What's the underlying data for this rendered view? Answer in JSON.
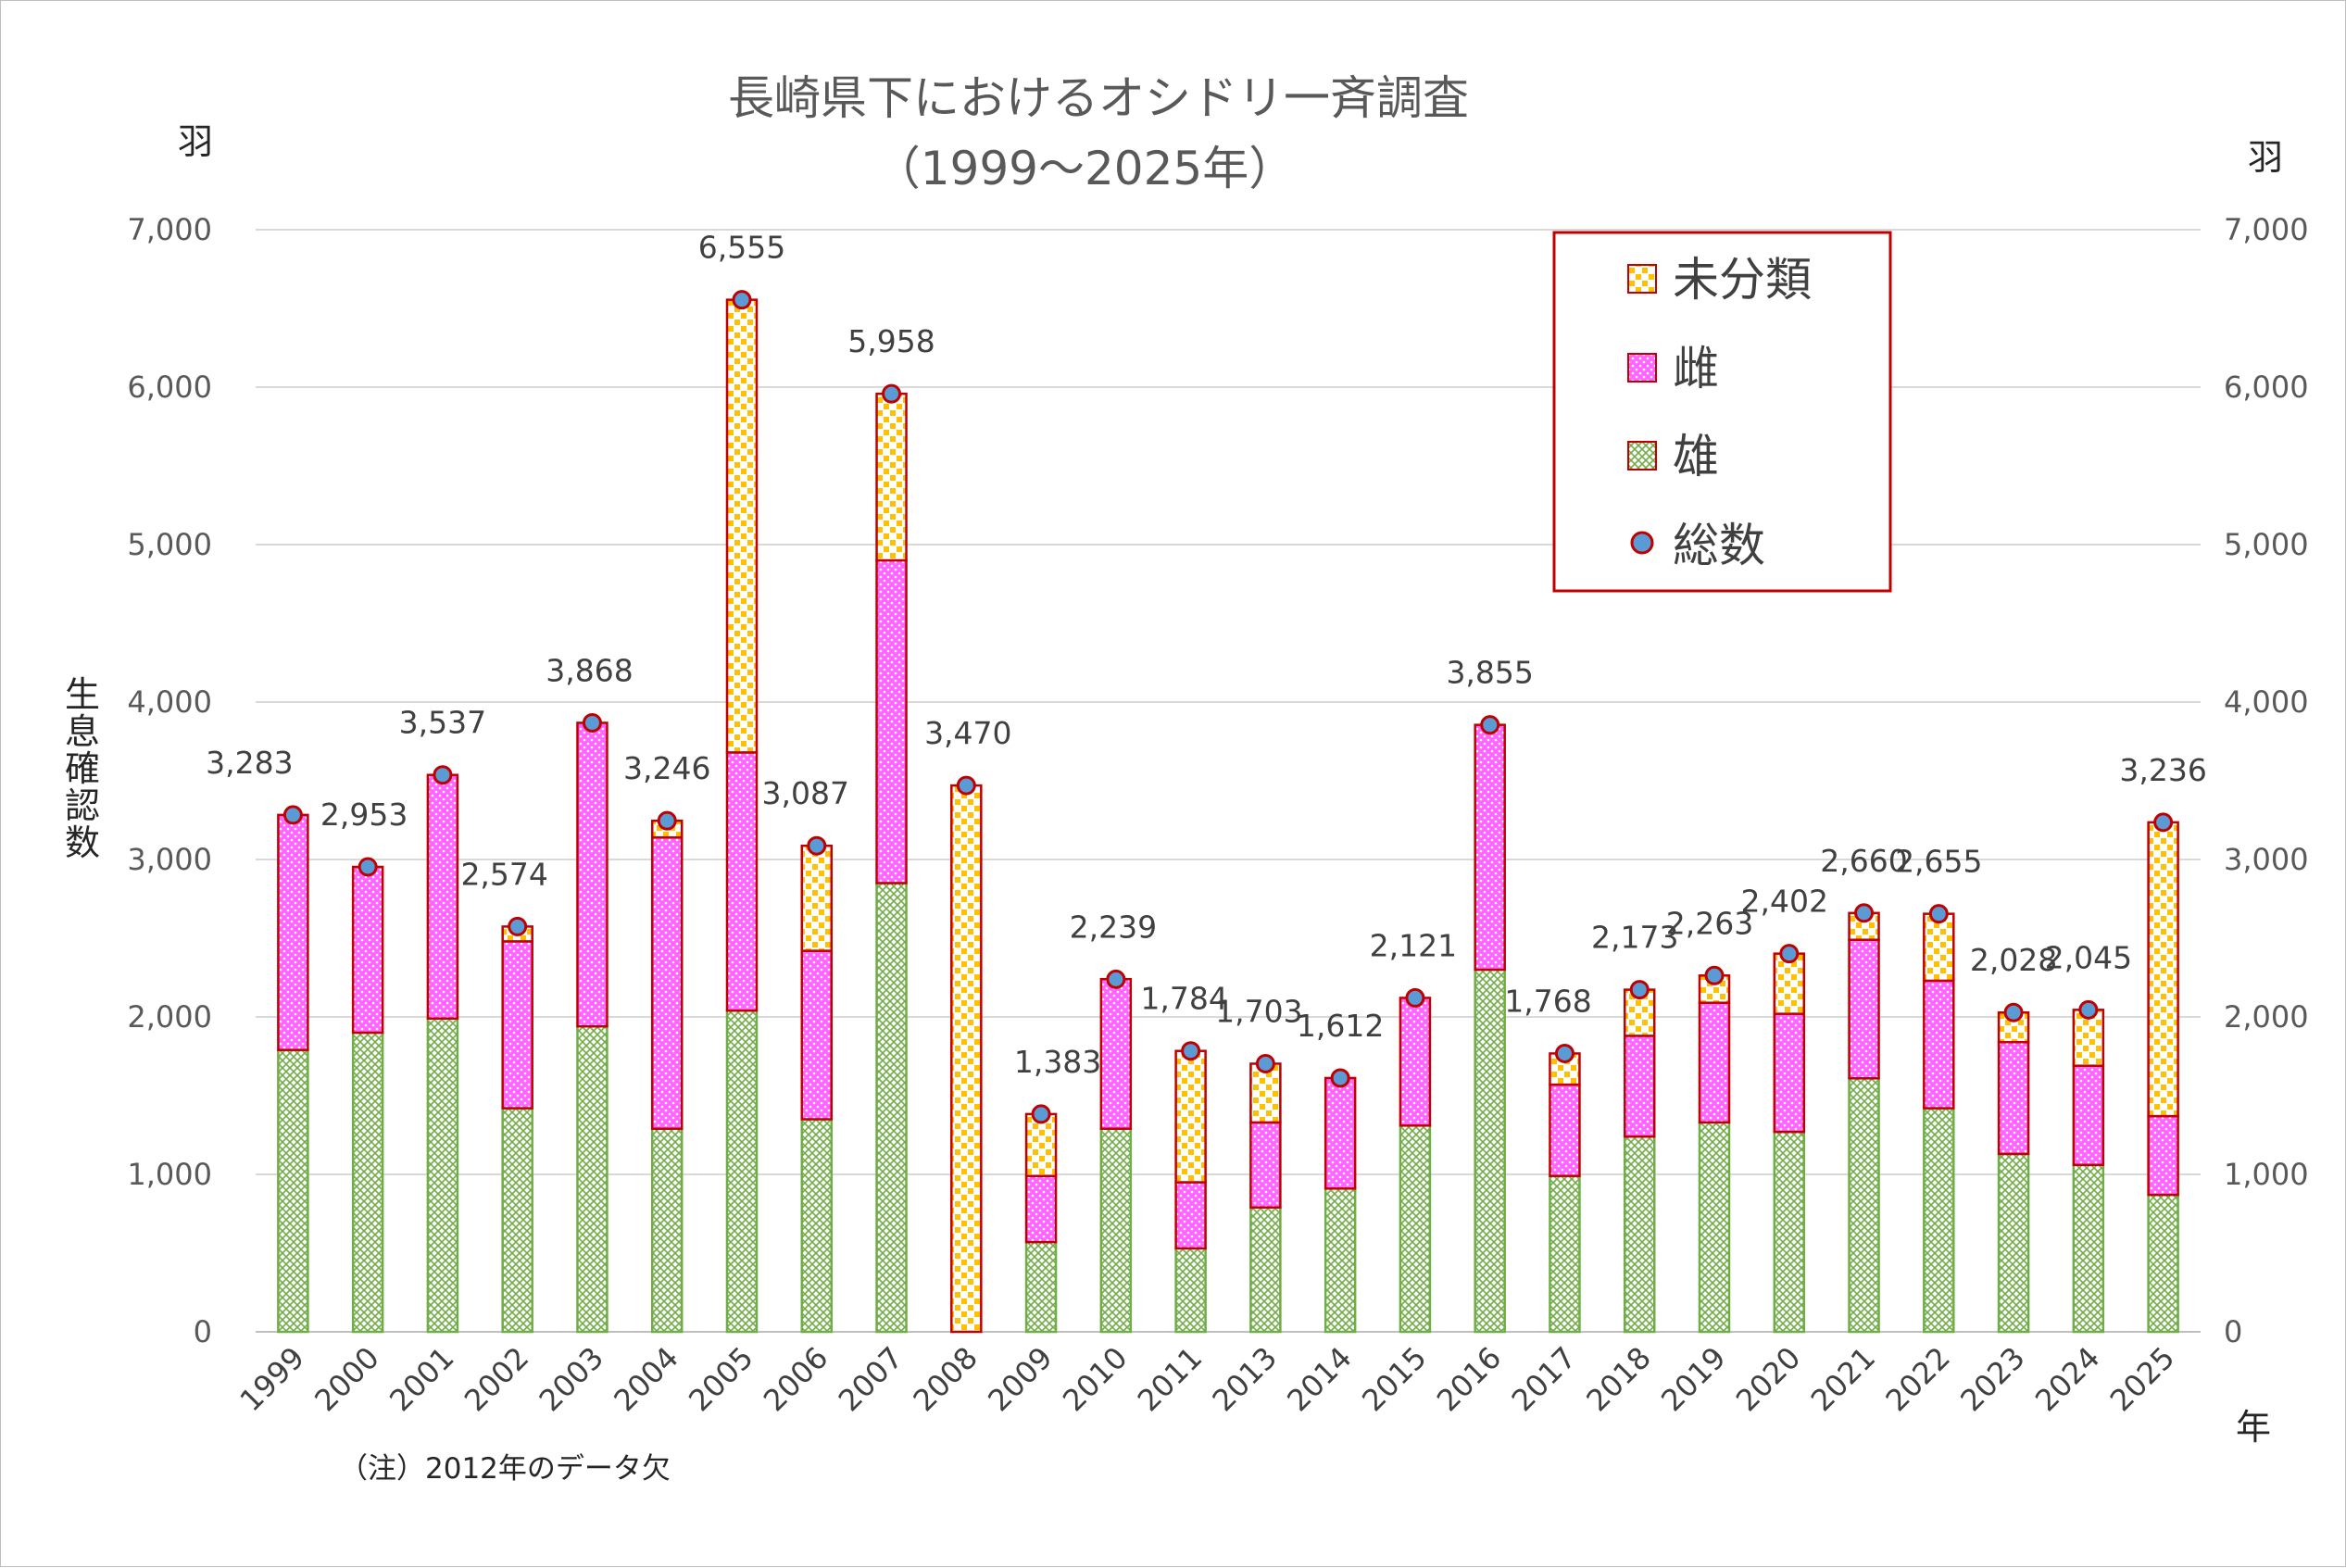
{
  "chart_data": {
    "type": "bar",
    "stacked": true,
    "title": "長崎県下におけるオシドリ一斉調査",
    "subtitle": "（1999～2025年）",
    "ylabel": "生息確認数",
    "y_unit_left": "羽",
    "y_unit_right": "羽",
    "xlabel": "年",
    "note": "（注）2012年のデータ欠",
    "ylim": [
      0,
      7000
    ],
    "yticks": [
      "0",
      "1,000",
      "2,000",
      "3,000",
      "4,000",
      "5,000",
      "6,000",
      "7,000"
    ],
    "grid": true,
    "legend_position": "top-right",
    "categories": [
      "1999",
      "2000",
      "2001",
      "2002",
      "2003",
      "2004",
      "2005",
      "2006",
      "2007",
      "2008",
      "2009",
      "2010",
      "2011",
      "2013",
      "2014",
      "2015",
      "2016",
      "2017",
      "2018",
      "2019",
      "2020",
      "2021",
      "2022",
      "2023",
      "2024",
      "2025"
    ],
    "series": [
      {
        "name": "雄",
        "color": "#70ad47",
        "pattern": "crosshatch",
        "values": [
          1790,
          1900,
          1990,
          1420,
          1940,
          1290,
          2040,
          1350,
          2850,
          0,
          570,
          1290,
          530,
          790,
          910,
          1310,
          2300,
          990,
          1240,
          1330,
          1270,
          1610,
          1420,
          1130,
          1060,
          870
        ]
      },
      {
        "name": "雌",
        "color": "#ff66ff",
        "pattern": "dots",
        "values": [
          1493,
          1053,
          1547,
          1060,
          1928,
          1850,
          1640,
          1070,
          2050,
          0,
          420,
          950,
          420,
          540,
          702,
          811,
          1555,
          580,
          640,
          760,
          750,
          880,
          810,
          710,
          630,
          500
        ]
      },
      {
        "name": "未分類",
        "color": "#ffc000",
        "pattern": "checker",
        "values": [
          0,
          0,
          0,
          94,
          0,
          106,
          2875,
          667,
          1058,
          3470,
          393,
          0,
          834,
          373,
          0,
          0,
          0,
          198,
          293,
          173,
          382,
          170,
          425,
          188,
          355,
          1866
        ]
      }
    ],
    "totals": {
      "name": "総数",
      "values": [
        3283,
        2953,
        3537,
        2574,
        3868,
        3246,
        6555,
        3087,
        5958,
        3470,
        1383,
        2239,
        1784,
        1703,
        1612,
        2121,
        3855,
        1768,
        2173,
        2263,
        2402,
        2660,
        2655,
        2028,
        2045,
        3236
      ],
      "labels": [
        "3,283",
        "2,953",
        "3,537",
        "2,574",
        "3,868",
        "3,246",
        "6,555",
        "3,087",
        "5,958",
        "3,470",
        "1,383",
        "2,239",
        "1,784",
        "1,703",
        "1,612",
        "2,121",
        "3,855",
        "1,768",
        "2,173",
        "2,263",
        "2,402",
        "2,660",
        "2,655",
        "2,028",
        "2,045",
        "3,236"
      ]
    },
    "legend": [
      "未分類",
      "雌",
      "雄",
      "総数"
    ],
    "colors": {
      "bar_outline": "#c00000",
      "marker_fill": "#5b9bd5",
      "marker_edge": "#c00000",
      "legend_border": "#c00000",
      "grid": "#d9d9d9"
    }
  }
}
